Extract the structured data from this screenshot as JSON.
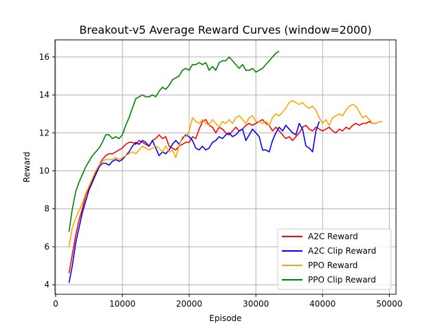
{
  "chart_data": {
    "type": "line",
    "title": "Breakout-v5 Average Reward Curves (window=2000)",
    "xlabel": "Episode",
    "ylabel": "Reward",
    "xlim": [
      -100,
      51000
    ],
    "ylim": [
      3.5,
      16.9
    ],
    "xticks": [
      0,
      10000,
      20000,
      30000,
      40000,
      50000
    ],
    "yticks": [
      4,
      6,
      8,
      10,
      12,
      14,
      16
    ],
    "grid": true,
    "legend_position": "lower-right",
    "series": [
      {
        "name": "A2C Reward",
        "color": "#ff0000",
        "x": [
          2000,
          2500,
          3000,
          3500,
          4000,
          4500,
          5000,
          5500,
          6000,
          6500,
          7000,
          7500,
          8000,
          8500,
          9000,
          9500,
          10000,
          10500,
          11000,
          11500,
          12000,
          12500,
          13000,
          13500,
          14000,
          14500,
          15000,
          15500,
          16000,
          16500,
          17000,
          17500,
          18000,
          18500,
          19000,
          19500,
          20000,
          20500,
          21000,
          21500,
          22000,
          22500,
          23000,
          23500,
          24000,
          24500,
          25000,
          25500,
          26000,
          26500,
          27000,
          27500,
          28000,
          28500,
          29000,
          29500,
          30000,
          30500,
          31000,
          31500,
          32000,
          32500,
          33000,
          33500,
          34000,
          34500,
          35000,
          35500,
          36000,
          36500,
          37000,
          37500,
          38000,
          38500,
          39000,
          39500,
          40000,
          40500,
          41000,
          41500,
          42000,
          42500,
          43000,
          43500,
          44000,
          44500,
          45000,
          45500,
          46000,
          46500,
          47000,
          47500,
          48000
        ],
        "y": [
          4.6,
          5.6,
          6.6,
          7.4,
          8.0,
          8.7,
          9.1,
          9.5,
          9.9,
          10.3,
          10.6,
          10.8,
          10.9,
          10.9,
          11.0,
          11.1,
          11.2,
          11.4,
          11.5,
          11.5,
          11.4,
          11.6,
          11.5,
          11.4,
          11.3,
          11.6,
          11.7,
          11.9,
          11.7,
          11.8,
          11.3,
          11.2,
          11.1,
          11.3,
          11.4,
          11.5,
          11.5,
          11.8,
          11.7,
          12.2,
          12.6,
          12.7,
          12.4,
          12.3,
          12.0,
          12.3,
          12.2,
          12.0,
          11.9,
          12.1,
          12.3,
          12.1,
          12.2,
          12.4,
          12.5,
          12.4,
          12.5,
          12.6,
          12.7,
          12.5,
          12.4,
          12.1,
          12.3,
          12.1,
          11.9,
          11.7,
          11.8,
          11.6,
          11.8,
          12.0,
          12.3,
          12.4,
          12.2,
          12.1,
          12.3,
          12.2,
          12.1,
          12.2,
          12.3,
          12.1,
          12.0,
          12.2,
          12.1,
          12.3,
          12.2,
          12.4,
          12.5,
          12.4,
          12.5,
          12.5,
          12.6,
          12.5,
          12.5
        ]
      },
      {
        "name": "A2C Clip Reward",
        "color": "#0000ff",
        "x": [
          2000,
          2500,
          3000,
          3500,
          4000,
          4500,
          5000,
          5500,
          6000,
          6500,
          7000,
          7500,
          8000,
          8500,
          9000,
          9500,
          10000,
          10500,
          11000,
          11500,
          12000,
          12500,
          13000,
          13500,
          14000,
          14500,
          15000,
          15500,
          16000,
          16500,
          17000,
          17500,
          18000,
          18500,
          19000,
          19500,
          20000,
          20500,
          21000,
          21500,
          22000,
          22500,
          23000,
          23500,
          24000,
          24500,
          25000,
          25500,
          26000,
          26500,
          27000,
          27500,
          28000,
          28500,
          29000,
          29500,
          30000,
          30500,
          31000,
          31500,
          32000,
          32500,
          33000,
          33500,
          34000,
          34500,
          35000,
          35500,
          36000,
          36500,
          37000,
          37500,
          38000,
          38500,
          39000,
          39500
        ],
        "y": [
          4.1,
          5.0,
          6.2,
          7.0,
          7.8,
          8.4,
          9.0,
          9.4,
          9.8,
          10.2,
          10.4,
          10.4,
          10.3,
          10.5,
          10.6,
          10.5,
          10.6,
          10.8,
          11.0,
          11.3,
          11.5,
          11.4,
          11.6,
          11.5,
          11.3,
          11.6,
          11.2,
          10.8,
          11.0,
          10.9,
          11.1,
          11.4,
          11.6,
          11.4,
          11.7,
          11.9,
          11.8,
          11.6,
          11.2,
          11.1,
          11.3,
          11.1,
          11.2,
          11.5,
          11.6,
          11.8,
          11.7,
          11.9,
          12.0,
          11.8,
          11.9,
          12.1,
          12.2,
          11.6,
          11.9,
          12.2,
          12.0,
          11.8,
          11.1,
          11.1,
          11.0,
          11.6,
          12.0,
          12.3,
          12.1,
          12.4,
          12.2,
          12.0,
          11.9,
          12.5,
          12.2,
          11.3,
          11.2,
          11.0,
          12.1,
          12.6
        ]
      },
      {
        "name": "PPO Reward",
        "color": "#ffa500",
        "x": [
          2000,
          2500,
          3000,
          3500,
          4000,
          4500,
          5000,
          5500,
          6000,
          6500,
          7000,
          7500,
          8000,
          8500,
          9000,
          9500,
          10000,
          10500,
          11000,
          11500,
          12000,
          12500,
          13000,
          13500,
          14000,
          14500,
          15000,
          15500,
          16000,
          16500,
          17000,
          17500,
          18000,
          18500,
          19000,
          19500,
          20000,
          20500,
          21000,
          21500,
          22000,
          22500,
          23000,
          23500,
          24000,
          24500,
          25000,
          25500,
          26000,
          26500,
          27000,
          27500,
          28000,
          28500,
          29000,
          29500,
          30000,
          30500,
          31000,
          31500,
          32000,
          32500,
          33000,
          33500,
          34000,
          34500,
          35000,
          35500,
          36000,
          36500,
          37000,
          37500,
          38000,
          38500,
          39000,
          39500,
          40000,
          40500,
          41000,
          41500,
          42000,
          42500,
          43000,
          43500,
          44000,
          44500,
          45000,
          45500,
          46000,
          46500,
          47000,
          47500,
          48000,
          48500,
          49000
        ],
        "y": [
          6.0,
          7.0,
          7.5,
          7.9,
          8.3,
          8.8,
          9.2,
          9.6,
          10.0,
          10.3,
          10.5,
          10.6,
          10.6,
          10.6,
          10.7,
          10.6,
          10.7,
          10.8,
          10.9,
          11.0,
          10.9,
          11.1,
          11.3,
          11.2,
          11.1,
          11.2,
          11.3,
          11.2,
          11.0,
          11.3,
          11.0,
          11.1,
          10.7,
          11.3,
          11.8,
          11.8,
          12.1,
          12.8,
          12.6,
          12.5,
          12.7,
          12.5,
          12.4,
          12.7,
          12.5,
          12.3,
          12.6,
          12.5,
          12.7,
          12.5,
          12.8,
          12.9,
          12.7,
          12.5,
          12.8,
          12.9,
          12.6,
          12.6,
          12.5,
          12.6,
          12.4,
          12.8,
          13.0,
          12.9,
          13.1,
          13.3,
          13.6,
          13.7,
          13.6,
          13.5,
          13.6,
          13.4,
          13.3,
          13.4,
          13.2,
          12.8,
          12.5,
          12.7,
          12.4,
          12.8,
          12.9,
          13.0,
          12.9,
          13.2,
          13.4,
          13.5,
          13.4,
          13.1,
          12.8,
          12.9,
          12.7,
          12.5,
          12.5,
          12.6,
          12.6
        ]
      },
      {
        "name": "PPO Clip Reward",
        "color": "#008000",
        "x": [
          2000,
          2500,
          3000,
          3500,
          4000,
          4500,
          5000,
          5500,
          6000,
          6500,
          7000,
          7500,
          8000,
          8500,
          9000,
          9500,
          10000,
          10500,
          11000,
          11500,
          12000,
          12500,
          13000,
          13500,
          14000,
          14500,
          15000,
          15500,
          16000,
          16500,
          17000,
          17500,
          18000,
          18500,
          19000,
          19500,
          20000,
          20500,
          21000,
          21500,
          22000,
          22500,
          23000,
          23500,
          24000,
          24500,
          25000,
          25500,
          26000,
          26500,
          27000,
          27500,
          28000,
          28500,
          29000,
          29500,
          30000,
          30500,
          31000,
          31500,
          32000,
          32500,
          33000,
          33500
        ],
        "y": [
          6.8,
          8.0,
          8.9,
          9.4,
          9.8,
          10.2,
          10.5,
          10.8,
          11.0,
          11.2,
          11.5,
          11.9,
          11.9,
          11.7,
          11.8,
          11.7,
          11.9,
          12.4,
          12.8,
          13.3,
          13.8,
          13.9,
          14.0,
          13.9,
          13.9,
          14.0,
          13.9,
          14.2,
          14.4,
          14.3,
          14.5,
          14.8,
          14.9,
          15.0,
          15.3,
          15.4,
          15.3,
          15.6,
          15.6,
          15.7,
          15.6,
          15.7,
          15.3,
          15.5,
          15.3,
          15.7,
          15.8,
          15.8,
          16.0,
          15.8,
          15.6,
          15.4,
          15.6,
          15.3,
          15.3,
          15.4,
          15.2,
          15.3,
          15.4,
          15.6,
          15.8,
          16.0,
          16.2,
          16.3
        ]
      }
    ]
  }
}
